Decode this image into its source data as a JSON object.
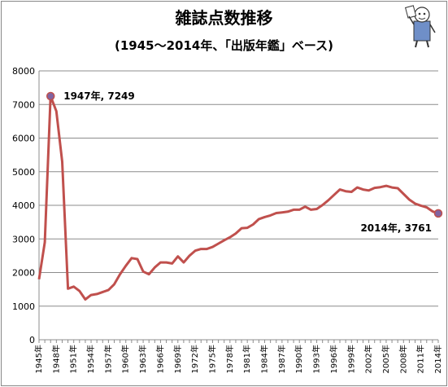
{
  "chart_data": {
    "type": "line",
    "title": "雑誌点数推移",
    "subtitle": "(1945〜2014年、「出版年鑑」ベース)",
    "ylim": [
      0,
      8000
    ],
    "yticks": [
      0,
      1000,
      2000,
      3000,
      4000,
      5000,
      6000,
      7000,
      8000
    ],
    "xlim": [
      1945,
      2014
    ],
    "xtick_labels": [
      "1945年",
      "1948年",
      "1951年",
      "1954年",
      "1957年",
      "1960年",
      "1963年",
      "1966年",
      "1969年",
      "1972年",
      "1975年",
      "1978年",
      "1981年",
      "1984年",
      "1987年",
      "1990年",
      "1993年",
      "1996年",
      "1999年",
      "2002年",
      "2005年",
      "2008年",
      "2011年",
      "2014年"
    ],
    "grid": true,
    "legend": "none",
    "line_color": "#c0504d",
    "marker_color": "#8064a2",
    "series": [
      {
        "years": [
          1945,
          1946,
          1947,
          1948,
          1949,
          1950,
          1951,
          1952,
          1953,
          1954,
          1955,
          1956,
          1957,
          1958,
          1959,
          1960,
          1961,
          1962,
          1963,
          1964,
          1965,
          1966,
          1967,
          1968,
          1969,
          1970,
          1971,
          1972,
          1973,
          1974,
          1975,
          1976,
          1977,
          1978,
          1979,
          1980,
          1981,
          1982,
          1983,
          1984,
          1985,
          1986,
          1987,
          1988,
          1989,
          1990,
          1991,
          1992,
          1993,
          1994,
          1995,
          1996,
          1997,
          1998,
          1999,
          2000,
          2001,
          2002,
          2003,
          2004,
          2005,
          2006,
          2007,
          2008,
          2009,
          2010,
          2011,
          2012,
          2013,
          2014
        ],
        "values": [
          1800,
          2900,
          7249,
          6800,
          5300,
          1520,
          1580,
          1450,
          1200,
          1330,
          1360,
          1420,
          1480,
          1650,
          1950,
          2200,
          2430,
          2400,
          2030,
          1950,
          2150,
          2300,
          2300,
          2270,
          2480,
          2300,
          2500,
          2650,
          2700,
          2700,
          2760,
          2860,
          2960,
          3050,
          3160,
          3320,
          3330,
          3430,
          3590,
          3650,
          3700,
          3770,
          3790,
          3810,
          3870,
          3870,
          3960,
          3870,
          3890,
          4010,
          4150,
          4310,
          4470,
          4420,
          4400,
          4530,
          4470,
          4440,
          4520,
          4540,
          4580,
          4530,
          4510,
          4340,
          4170,
          4050,
          3990,
          3940,
          3820,
          3761
        ]
      }
    ],
    "annotations": [
      {
        "year": 1947,
        "value": 7249,
        "label": "1947年, 7249"
      },
      {
        "year": 2014,
        "value": 3761,
        "label": "2014年, 3761"
      }
    ]
  }
}
